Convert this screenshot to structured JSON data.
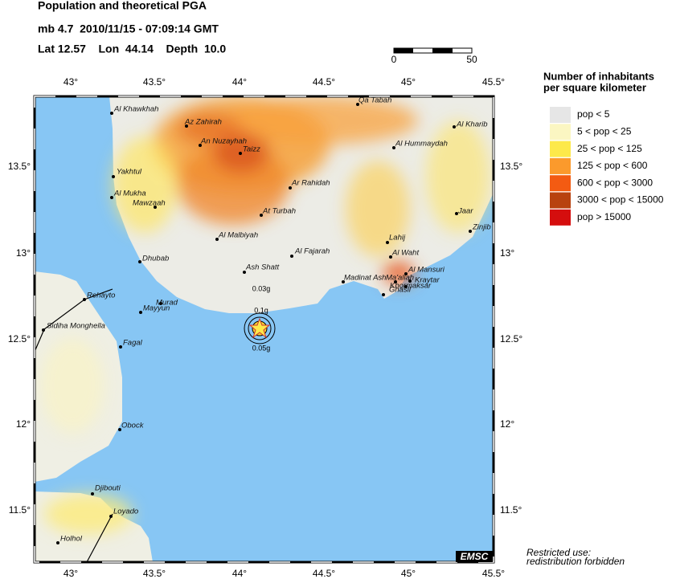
{
  "header": {
    "title": "Population and theoretical PGA",
    "event": "mb 4.7  2010/11/15 - 07:09:14 GMT",
    "location": "Lat 12.57    Lon  44.14    Depth  10.0"
  },
  "scale": [
    "0",
    "50"
  ],
  "axis": {
    "lon": [
      "43°",
      "43.5°",
      "44°",
      "44.5°",
      "45°",
      "45.5°"
    ],
    "lat": [
      "13.5°",
      "13°",
      "12.5°",
      "12°",
      "11.5°"
    ]
  },
  "cities": [
    "Al Khawkhah",
    "Az Zahirah",
    "An Nuzayhah",
    "Taizz",
    "Qa Tabah",
    "Al Kharib",
    "Al Hummaydah",
    "Yakhtul",
    "Al Mukha",
    "Mawzaah",
    "Ar Rahidah",
    "At Turbah",
    "Jaar",
    "Zinjib",
    "Al Malbiyah",
    "Lahij",
    "Al Fajarah",
    "Al Waht",
    "Dhubab",
    "Ash Shatt",
    "Al Mansuri",
    "Madinat Ash",
    "Ma'allah",
    "Kraytar",
    "Khormaksar",
    "Ghasil",
    "Rehayto",
    "Murad",
    "Mayyun",
    "Sidiha Monghella",
    "Fagal",
    "Obock",
    "Djibouti",
    "Loyado",
    "Holhol"
  ],
  "pga": [
    "0.03g",
    "0.1g",
    "0.05g"
  ],
  "legend": {
    "title": [
      "Number of inhabitants",
      "per square kilometer"
    ],
    "items": [
      {
        "label": "pop < 5",
        "color": "#e6e6e6"
      },
      {
        "label": "5 < pop < 25",
        "color": "#fbf6c2"
      },
      {
        "label": "25 < pop < 125",
        "color": "#fde94a"
      },
      {
        "label": "125 < pop < 600",
        "color": "#fb9a2c"
      },
      {
        "label": "600 < pop < 3000",
        "color": "#f35b12"
      },
      {
        "label": "3000 < pop < 15000",
        "color": "#b8420f"
      },
      {
        "label": "pop > 15000",
        "color": "#d50e0e"
      }
    ]
  },
  "credit": "EMSC",
  "notice": [
    "Restricted use:",
    "redistribution forbidden"
  ]
}
